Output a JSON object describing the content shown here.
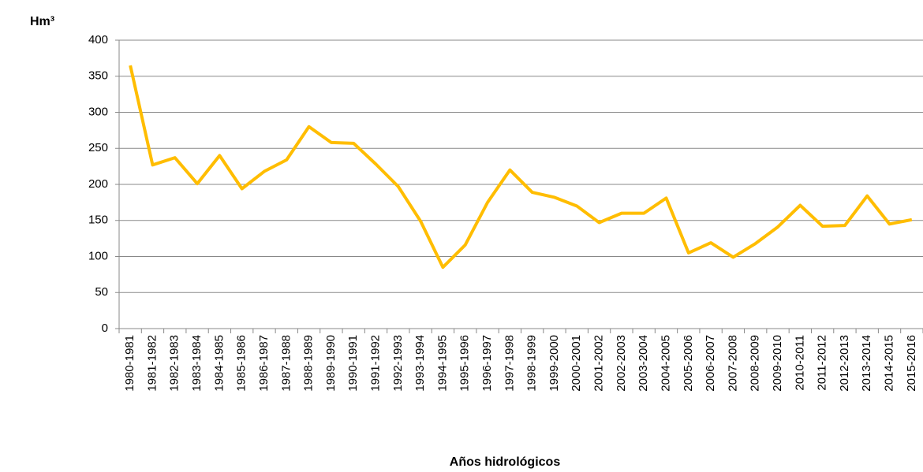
{
  "chart_data": {
    "type": "line",
    "y_label": "Hm³",
    "x_label": "Años hidrológicos",
    "categories": [
      "1980-1981",
      "1981-1982",
      "1982-1983",
      "1983-1984",
      "1984-1985",
      "1985-1986",
      "1986-1987",
      "1987-1988",
      "1988-1989",
      "1989-1990",
      "1990-1991",
      "1991-1992",
      "1992-1993",
      "1993-1994",
      "1994-1995",
      "1995-1996",
      "1996-1997",
      "1997-1998",
      "1998-1999",
      "1999-2000",
      "2000-2001",
      "2001-2002",
      "2002-2003",
      "2003-2004",
      "2004-2005",
      "2005-2006",
      "2006-2007",
      "2007-2008",
      "2008-2009",
      "2009-2010",
      "2010-2011",
      "2011-2012",
      "2012-2013",
      "2013-2014",
      "2014-2015",
      "2015-2016"
    ],
    "values": [
      365,
      227,
      237,
      201,
      240,
      194,
      218,
      234,
      280,
      258,
      257,
      228,
      197,
      149,
      85,
      116,
      175,
      220,
      189,
      182,
      170,
      147,
      160,
      160,
      181,
      105,
      119,
      99,
      118,
      141,
      171,
      142,
      143,
      184,
      145,
      151
    ],
    "color": "#ffbd00",
    "ylim": [
      0,
      400
    ],
    "yticks": [
      0,
      50,
      100,
      150,
      200,
      250,
      300,
      350,
      400
    ],
    "grid": true
  }
}
